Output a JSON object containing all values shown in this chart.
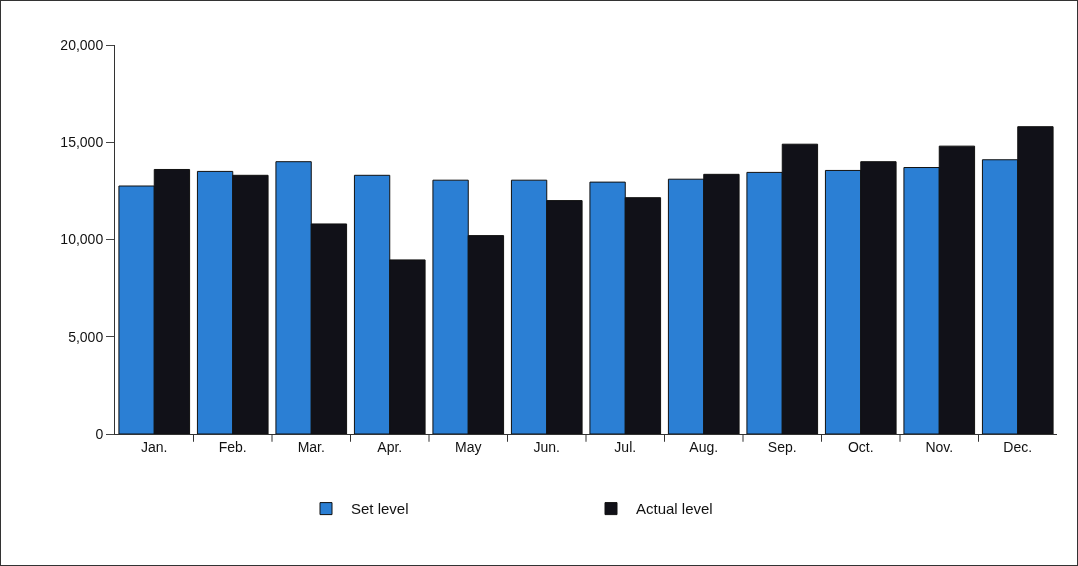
{
  "chart_data": {
    "type": "bar",
    "categories": [
      "Jan.",
      "Feb.",
      "Mar.",
      "Apr.",
      "May",
      "Jun.",
      "Jul.",
      "Aug.",
      "Sep.",
      "Oct.",
      "Nov.",
      "Dec."
    ],
    "series": [
      {
        "name": "Set level",
        "color": "#2b7fd4",
        "values": [
          12750,
          13500,
          14000,
          13300,
          13050,
          13050,
          12950,
          13100,
          13450,
          13550,
          13700,
          14100
        ]
      },
      {
        "name": "Actual level",
        "color": "#111118",
        "values": [
          13600,
          13300,
          10800,
          8950,
          10200,
          12000,
          12150,
          13350,
          14900,
          14000,
          14800,
          15800
        ]
      }
    ],
    "ylim": [
      0,
      20000
    ],
    "yticks": [
      {
        "value": 0,
        "label": "0"
      },
      {
        "value": 5000,
        "label": "5,000"
      },
      {
        "value": 10000,
        "label": "10,000"
      },
      {
        "value": 15000,
        "label": "15,000"
      },
      {
        "value": 20000,
        "label": "20,000"
      }
    ],
    "legend": "bottom"
  }
}
